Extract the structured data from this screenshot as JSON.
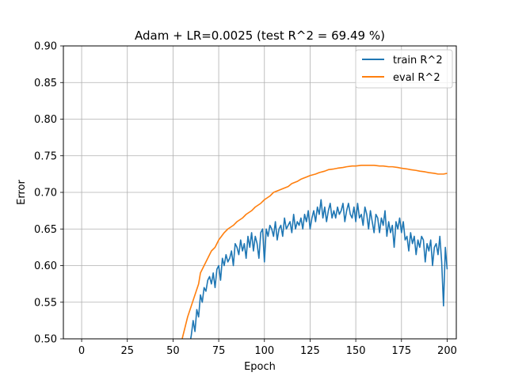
{
  "chart_data": {
    "type": "line",
    "title": "Adam + LR=0.0025 (test R^2 = 69.49 %)",
    "xlabel": "Epoch",
    "ylabel": "Error",
    "xlim": [
      -10,
      205
    ],
    "ylim": [
      0.5,
      0.9
    ],
    "xticks": [
      0,
      25,
      50,
      75,
      100,
      125,
      150,
      175,
      200
    ],
    "xtick_labels": [
      "0",
      "25",
      "50",
      "75",
      "100",
      "125",
      "150",
      "175",
      "200"
    ],
    "yticks": [
      0.5,
      0.55,
      0.6,
      0.65,
      0.7,
      0.75,
      0.8,
      0.85,
      0.9
    ],
    "ytick_labels": [
      "0.50",
      "0.55",
      "0.60",
      "0.65",
      "0.70",
      "0.75",
      "0.80",
      "0.85",
      "0.90"
    ],
    "grid": true,
    "legend_position": "top-right",
    "series": [
      {
        "name": "train R^2",
        "color": "#1f77b4",
        "points": [
          [
            58,
            0.5
          ],
          [
            59,
            0.49
          ],
          [
            60,
            0.505
          ],
          [
            61,
            0.525
          ],
          [
            62,
            0.51
          ],
          [
            63,
            0.54
          ],
          [
            64,
            0.53
          ],
          [
            65,
            0.56
          ],
          [
            66,
            0.55
          ],
          [
            67,
            0.57
          ],
          [
            68,
            0.565
          ],
          [
            69,
            0.58
          ],
          [
            70,
            0.585
          ],
          [
            71,
            0.575
          ],
          [
            72,
            0.59
          ],
          [
            73,
            0.57
          ],
          [
            74,
            0.595
          ],
          [
            75,
            0.6
          ],
          [
            76,
            0.58
          ],
          [
            77,
            0.61
          ],
          [
            78,
            0.6
          ],
          [
            79,
            0.615
          ],
          [
            80,
            0.605
          ],
          [
            81,
            0.61
          ],
          [
            82,
            0.62
          ],
          [
            83,
            0.6
          ],
          [
            84,
            0.63
          ],
          [
            85,
            0.625
          ],
          [
            86,
            0.615
          ],
          [
            87,
            0.635
          ],
          [
            88,
            0.62
          ],
          [
            89,
            0.63
          ],
          [
            90,
            0.61
          ],
          [
            91,
            0.64
          ],
          [
            92,
            0.625
          ],
          [
            93,
            0.645
          ],
          [
            94,
            0.62
          ],
          [
            95,
            0.64
          ],
          [
            96,
            0.63
          ],
          [
            97,
            0.61
          ],
          [
            98,
            0.645
          ],
          [
            99,
            0.65
          ],
          [
            100,
            0.605
          ],
          [
            101,
            0.65
          ],
          [
            102,
            0.64
          ],
          [
            103,
            0.655
          ],
          [
            104,
            0.65
          ],
          [
            105,
            0.64
          ],
          [
            106,
            0.66
          ],
          [
            107,
            0.635
          ],
          [
            108,
            0.65
          ],
          [
            109,
            0.655
          ],
          [
            110,
            0.64
          ],
          [
            111,
            0.665
          ],
          [
            112,
            0.65
          ],
          [
            113,
            0.655
          ],
          [
            114,
            0.66
          ],
          [
            115,
            0.645
          ],
          [
            116,
            0.67
          ],
          [
            117,
            0.65
          ],
          [
            118,
            0.66
          ],
          [
            119,
            0.655
          ],
          [
            120,
            0.665
          ],
          [
            121,
            0.65
          ],
          [
            122,
            0.67
          ],
          [
            123,
            0.66
          ],
          [
            124,
            0.675
          ],
          [
            125,
            0.65
          ],
          [
            126,
            0.665
          ],
          [
            127,
            0.675
          ],
          [
            128,
            0.66
          ],
          [
            129,
            0.68
          ],
          [
            130,
            0.67
          ],
          [
            131,
            0.69
          ],
          [
            132,
            0.665
          ],
          [
            133,
            0.68
          ],
          [
            134,
            0.66
          ],
          [
            135,
            0.675
          ],
          [
            136,
            0.685
          ],
          [
            137,
            0.665
          ],
          [
            138,
            0.675
          ],
          [
            139,
            0.665
          ],
          [
            140,
            0.68
          ],
          [
            141,
            0.67
          ],
          [
            142,
            0.675
          ],
          [
            143,
            0.685
          ],
          [
            144,
            0.66
          ],
          [
            145,
            0.675
          ],
          [
            146,
            0.685
          ],
          [
            147,
            0.67
          ],
          [
            148,
            0.665
          ],
          [
            149,
            0.68
          ],
          [
            150,
            0.66
          ],
          [
            151,
            0.685
          ],
          [
            152,
            0.665
          ],
          [
            153,
            0.67
          ],
          [
            154,
            0.655
          ],
          [
            155,
            0.68
          ],
          [
            156,
            0.67
          ],
          [
            157,
            0.65
          ],
          [
            158,
            0.675
          ],
          [
            159,
            0.66
          ],
          [
            160,
            0.645
          ],
          [
            161,
            0.67
          ],
          [
            162,
            0.665
          ],
          [
            163,
            0.645
          ],
          [
            164,
            0.665
          ],
          [
            165,
            0.655
          ],
          [
            166,
            0.675
          ],
          [
            167,
            0.64
          ],
          [
            168,
            0.66
          ],
          [
            169,
            0.645
          ],
          [
            170,
            0.655
          ],
          [
            171,
            0.625
          ],
          [
            172,
            0.66
          ],
          [
            173,
            0.65
          ],
          [
            174,
            0.665
          ],
          [
            175,
            0.645
          ],
          [
            176,
            0.66
          ],
          [
            177,
            0.635
          ],
          [
            178,
            0.64
          ],
          [
            179,
            0.62
          ],
          [
            180,
            0.645
          ],
          [
            181,
            0.63
          ],
          [
            182,
            0.64
          ],
          [
            183,
            0.615
          ],
          [
            184,
            0.635
          ],
          [
            185,
            0.625
          ],
          [
            186,
            0.64
          ],
          [
            187,
            0.635
          ],
          [
            188,
            0.605
          ],
          [
            189,
            0.63
          ],
          [
            190,
            0.62
          ],
          [
            191,
            0.635
          ],
          [
            192,
            0.6
          ],
          [
            193,
            0.625
          ],
          [
            194,
            0.63
          ],
          [
            195,
            0.615
          ],
          [
            196,
            0.64
          ],
          [
            197,
            0.605
          ],
          [
            198,
            0.545
          ],
          [
            199,
            0.625
          ],
          [
            200,
            0.595
          ]
        ]
      },
      {
        "name": "eval R^2",
        "color": "#ff7f0e",
        "points": [
          [
            55,
            0.5
          ],
          [
            56,
            0.51
          ],
          [
            58,
            0.53
          ],
          [
            60,
            0.545
          ],
          [
            62,
            0.56
          ],
          [
            64,
            0.575
          ],
          [
            65,
            0.59
          ],
          [
            67,
            0.6
          ],
          [
            69,
            0.61
          ],
          [
            71,
            0.62
          ],
          [
            73,
            0.625
          ],
          [
            75,
            0.635
          ],
          [
            78,
            0.645
          ],
          [
            80,
            0.65
          ],
          [
            83,
            0.655
          ],
          [
            85,
            0.66
          ],
          [
            88,
            0.665
          ],
          [
            90,
            0.67
          ],
          [
            93,
            0.675
          ],
          [
            95,
            0.68
          ],
          [
            98,
            0.685
          ],
          [
            100,
            0.69
          ],
          [
            103,
            0.695
          ],
          [
            105,
            0.7
          ],
          [
            108,
            0.703
          ],
          [
            110,
            0.705
          ],
          [
            113,
            0.708
          ],
          [
            115,
            0.712
          ],
          [
            118,
            0.715
          ],
          [
            120,
            0.718
          ],
          [
            123,
            0.721
          ],
          [
            125,
            0.723
          ],
          [
            128,
            0.725
          ],
          [
            130,
            0.727
          ],
          [
            133,
            0.729
          ],
          [
            135,
            0.731
          ],
          [
            138,
            0.732
          ],
          [
            140,
            0.733
          ],
          [
            143,
            0.734
          ],
          [
            145,
            0.735
          ],
          [
            148,
            0.736
          ],
          [
            150,
            0.736
          ],
          [
            153,
            0.737
          ],
          [
            155,
            0.737
          ],
          [
            158,
            0.737
          ],
          [
            160,
            0.737
          ],
          [
            163,
            0.736
          ],
          [
            165,
            0.736
          ],
          [
            168,
            0.735
          ],
          [
            170,
            0.735
          ],
          [
            173,
            0.734
          ],
          [
            175,
            0.733
          ],
          [
            178,
            0.732
          ],
          [
            180,
            0.731
          ],
          [
            183,
            0.73
          ],
          [
            185,
            0.729
          ],
          [
            188,
            0.728
          ],
          [
            190,
            0.727
          ],
          [
            193,
            0.726
          ],
          [
            195,
            0.725
          ],
          [
            198,
            0.725
          ],
          [
            200,
            0.726
          ]
        ]
      }
    ]
  }
}
